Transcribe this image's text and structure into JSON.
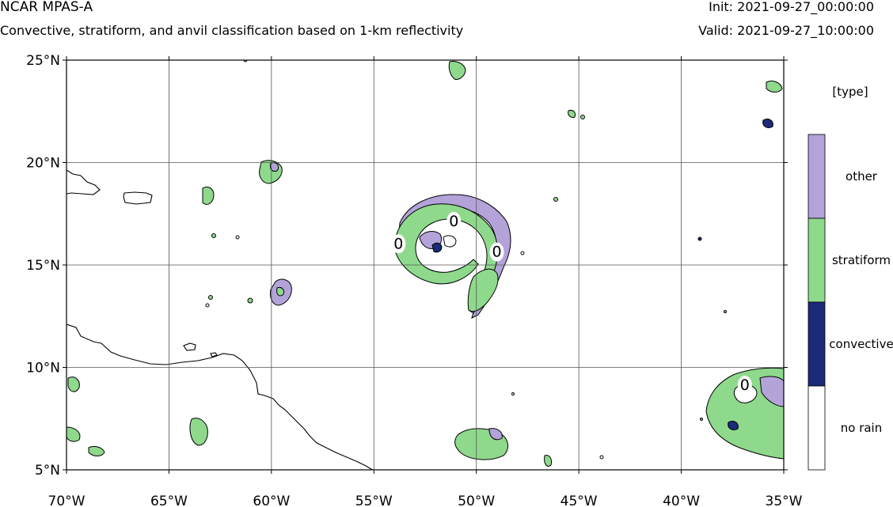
{
  "header": {
    "title": "NCAR MPAS-A",
    "subtitle": "Convective, stratiform, and anvil classification based on 1-km reflectivity",
    "init": "Init: 2021-09-27_00:00:00",
    "valid": "Valid: 2021-09-27_10:00:00"
  },
  "map": {
    "lon_range": [
      -70,
      -35
    ],
    "lat_range": [
      5,
      25
    ],
    "lon_ticks": [
      {
        "value": -70,
        "label": "70°W"
      },
      {
        "value": -65,
        "label": "65°W"
      },
      {
        "value": -60,
        "label": "60°W"
      },
      {
        "value": -55,
        "label": "55°W"
      },
      {
        "value": -50,
        "label": "50°W"
      },
      {
        "value": -45,
        "label": "45°W"
      },
      {
        "value": -40,
        "label": "40°W"
      },
      {
        "value": -35,
        "label": "35°W"
      }
    ],
    "lat_ticks": [
      {
        "value": 25,
        "label": "25°N"
      },
      {
        "value": 20,
        "label": "20°N"
      },
      {
        "value": 15,
        "label": "15°N"
      },
      {
        "value": 10,
        "label": "10°N"
      },
      {
        "value": 5,
        "label": "5°N"
      }
    ],
    "gridlines": true,
    "contour_labels": [
      {
        "text": "0",
        "lon": -51.1,
        "lat": 16.9
      },
      {
        "text": "0",
        "lon": -53.8,
        "lat": 15.8
      },
      {
        "text": "0",
        "lon": -49.0,
        "lat": 15.4
      },
      {
        "text": "0",
        "lon": -36.9,
        "lat": 8.9
      }
    ],
    "colors": {
      "other": "#b3a3d9",
      "stratiform": "#8fd98d",
      "convective": "#1c2a78",
      "no_rain": "#ffffff"
    }
  },
  "legend": {
    "title": "[type]",
    "categories": [
      {
        "label": "other",
        "color": "#b3a3d9"
      },
      {
        "label": "stratiform",
        "color": "#8fd98d"
      },
      {
        "label": "convective",
        "color": "#1c2a78"
      },
      {
        "label": "no rain",
        "color": "#ffffff"
      }
    ]
  }
}
